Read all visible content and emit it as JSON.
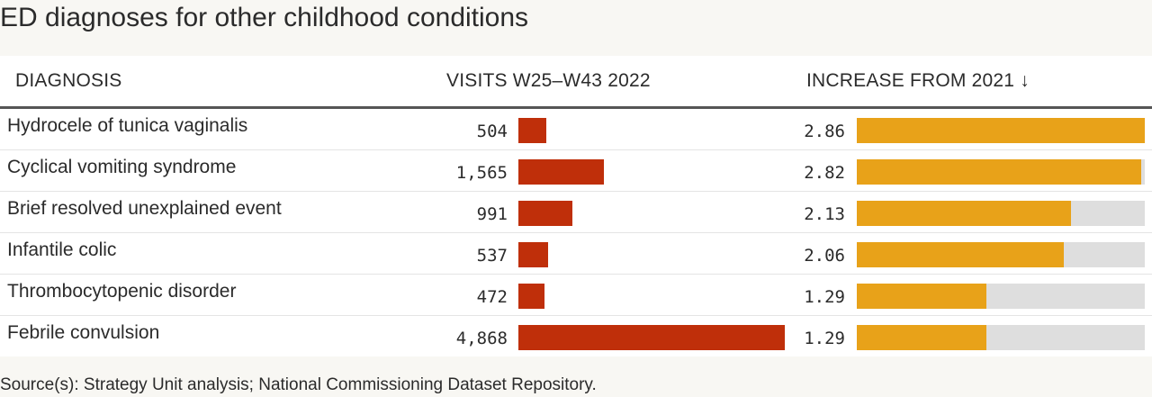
{
  "title": "ED diagnoses for other childhood conditions",
  "source": "Source(s): Strategy Unit analysis; National Commissioning Dataset Repository.",
  "columns": {
    "diagnosis": "DIAGNOSIS",
    "visits": "VISITS W25–W43 2022",
    "increase": "INCREASE FROM 2021 ↓"
  },
  "colors": {
    "visits_bar": "#bf2f0a",
    "increase_bar": "#e8a219",
    "track": "#dedede"
  },
  "chart_data": {
    "type": "table",
    "columns": [
      "DIAGNOSIS",
      "VISITS W25–W43 2022",
      "INCREASE FROM 2021 ↓"
    ],
    "sort": "increase descending",
    "visits_max": 4868,
    "increase_max": 2.86,
    "rows": [
      {
        "diagnosis": "Hydrocele of tunica vaginalis",
        "visits": 504,
        "visits_label": "504",
        "increase": 2.86,
        "increase_label": "2.86"
      },
      {
        "diagnosis": "Cyclical vomiting syndrome",
        "visits": 1565,
        "visits_label": "1,565",
        "increase": 2.82,
        "increase_label": "2.82"
      },
      {
        "diagnosis": "Brief resolved unexplained event",
        "visits": 991,
        "visits_label": "991",
        "increase": 2.13,
        "increase_label": "2.13"
      },
      {
        "diagnosis": "Infantile colic",
        "visits": 537,
        "visits_label": "537",
        "increase": 2.06,
        "increase_label": "2.06"
      },
      {
        "diagnosis": "Thrombocytopenic disorder",
        "visits": 472,
        "visits_label": "472",
        "increase": 1.29,
        "increase_label": "1.29"
      },
      {
        "diagnosis": "Febrile convulsion",
        "visits": 4868,
        "visits_label": "4,868",
        "increase": 1.29,
        "increase_label": "1.29"
      }
    ]
  }
}
